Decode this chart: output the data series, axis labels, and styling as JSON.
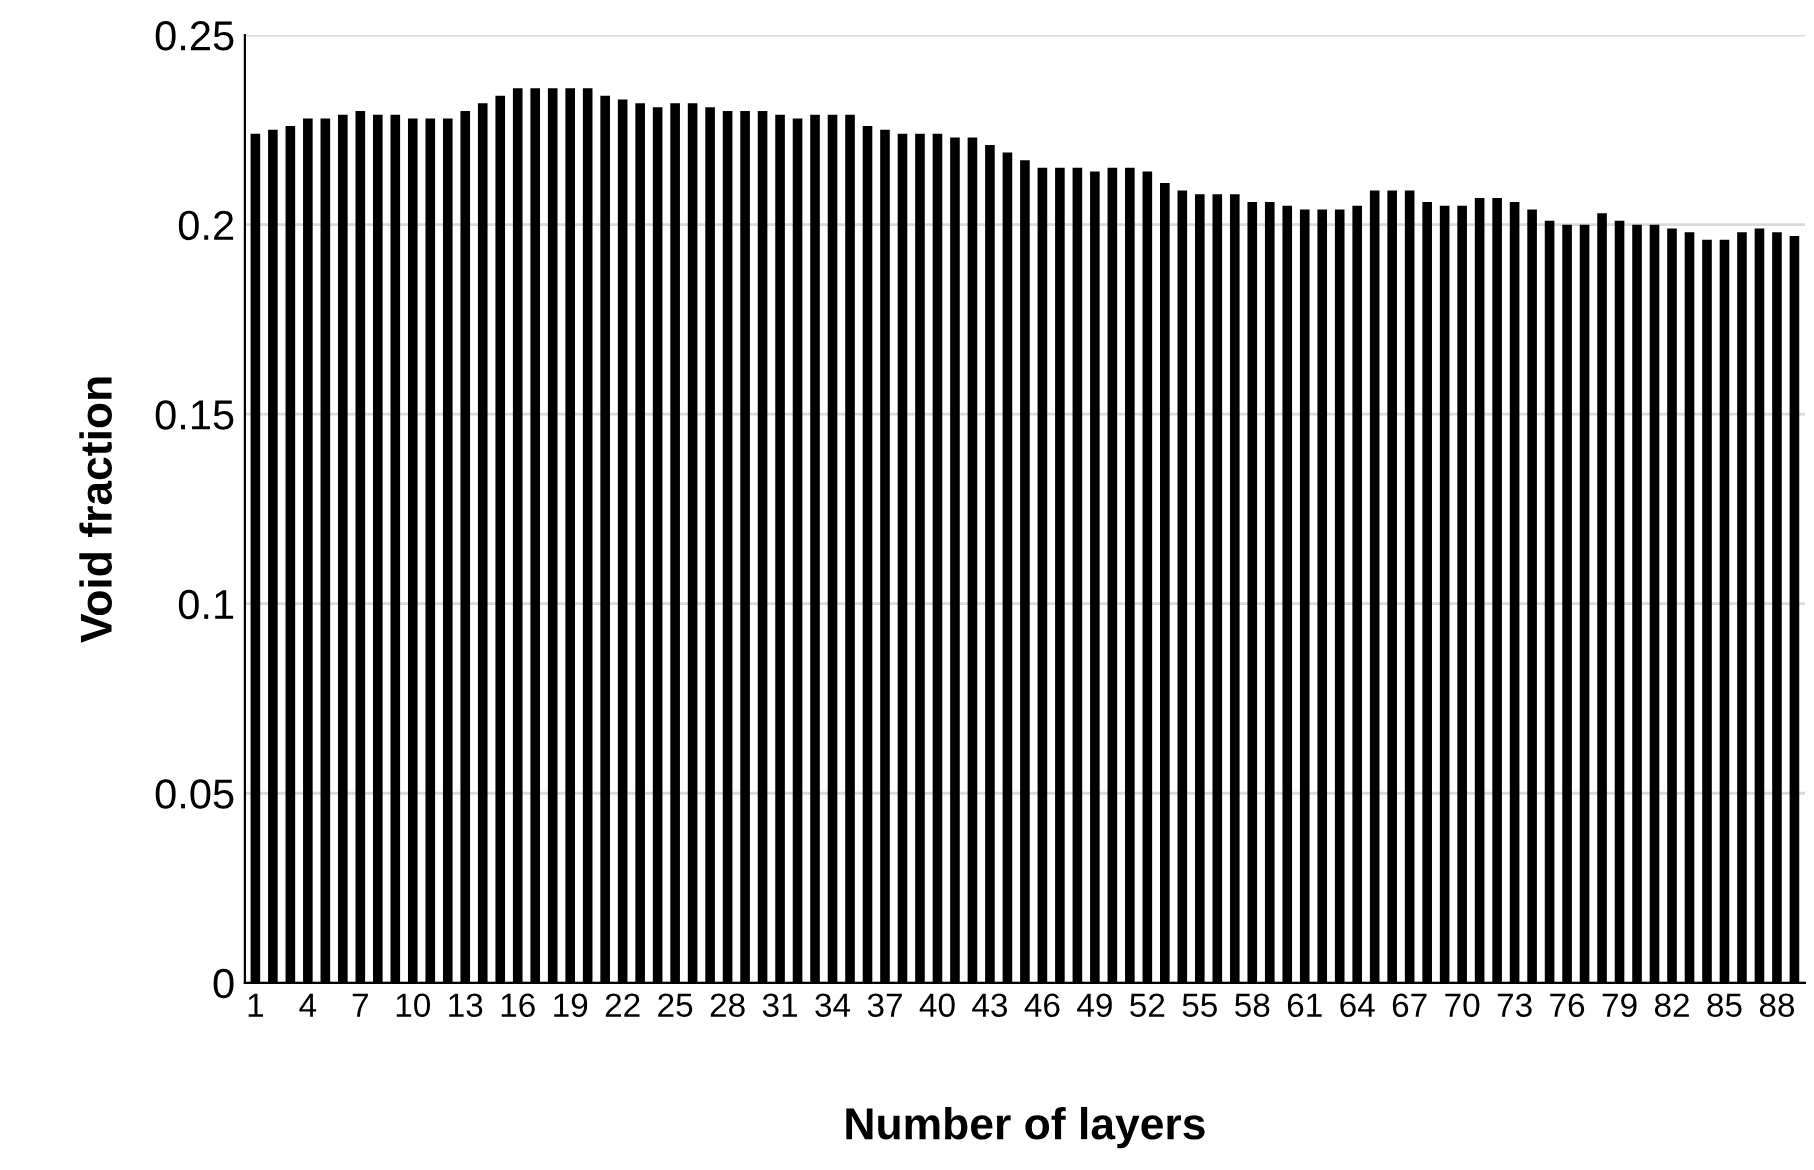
{
  "chart_data": {
    "type": "bar",
    "xlabel": "Number of layers",
    "ylabel": "Void fraction",
    "categories": [
      "1",
      null,
      null,
      "4",
      null,
      null,
      "7",
      null,
      null,
      "10",
      null,
      null,
      "13",
      null,
      null,
      "16",
      null,
      null,
      "19",
      null,
      null,
      "22",
      null,
      null,
      "25",
      null,
      null,
      "28",
      null,
      null,
      "31",
      null,
      null,
      "34",
      null,
      null,
      "37",
      null,
      null,
      "40",
      null,
      null,
      "43",
      null,
      null,
      "46",
      null,
      null,
      "49",
      null,
      null,
      "52",
      null,
      null,
      "55",
      null,
      null,
      "58",
      null,
      null,
      "61",
      null,
      null,
      "64",
      null,
      null,
      "67",
      null,
      null,
      "70",
      null,
      null,
      "73",
      null,
      null,
      "76",
      null,
      null,
      "79",
      null,
      null,
      "82",
      null,
      null,
      "85",
      null,
      null,
      "88",
      null
    ],
    "values": [
      0.224,
      0.225,
      0.226,
      0.228,
      0.228,
      0.229,
      0.23,
      0.229,
      0.229,
      0.228,
      0.228,
      0.228,
      0.23,
      0.232,
      0.234,
      0.236,
      0.236,
      0.236,
      0.236,
      0.236,
      0.234,
      0.233,
      0.232,
      0.231,
      0.232,
      0.232,
      0.231,
      0.23,
      0.23,
      0.23,
      0.229,
      0.228,
      0.229,
      0.229,
      0.229,
      0.226,
      0.225,
      0.224,
      0.224,
      0.224,
      0.223,
      0.223,
      0.221,
      0.219,
      0.217,
      0.215,
      0.215,
      0.215,
      0.214,
      0.215,
      0.215,
      0.214,
      0.211,
      0.209,
      0.208,
      0.208,
      0.208,
      0.206,
      0.206,
      0.205,
      0.204,
      0.204,
      0.204,
      0.205,
      0.209,
      0.209,
      0.209,
      0.206,
      0.205,
      0.205,
      0.207,
      0.207,
      0.206,
      0.204,
      0.201,
      0.2,
      0.2,
      0.203,
      0.201,
      0.2,
      0.2,
      0.199,
      0.198,
      0.196,
      0.196,
      0.198,
      0.199,
      0.198,
      0.197
    ],
    "color": "#000000",
    "ylim": [
      0,
      0.25
    ],
    "yticks": [
      0,
      0.05,
      0.1,
      0.15,
      0.2,
      0.25
    ],
    "grid": "y"
  }
}
